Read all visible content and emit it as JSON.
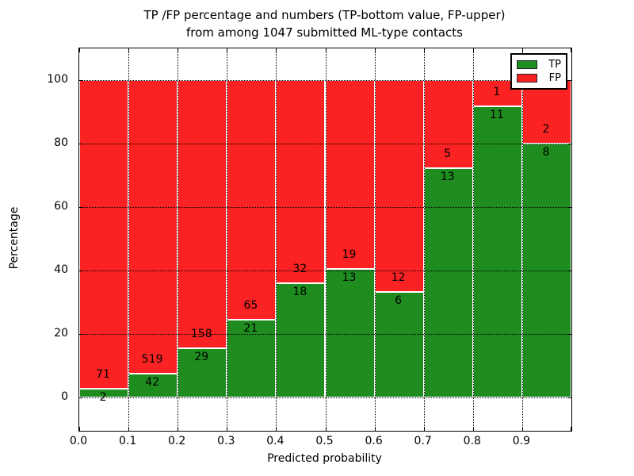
{
  "title": {
    "line1": "TP /FP percentage and numbers (TP-bottom value, FP-upper)",
    "line2": "from among 1047 submitted ML-type contacts"
  },
  "axes": {
    "xlabel": "Predicted probability",
    "ylabel": "Percentage",
    "x_tick_labels": [
      "0.0",
      "0.1",
      "0.2",
      "0.3",
      "0.4",
      "0.5",
      "0.6",
      "0.7",
      "0.8",
      "0.9"
    ],
    "y_tick_labels": [
      "0",
      "20",
      "40",
      "60",
      "80",
      "100"
    ],
    "y_tick_values": [
      0,
      20,
      40,
      60,
      80,
      100
    ]
  },
  "legend": {
    "items": [
      {
        "label": "TP",
        "color": "#1e8c1e"
      },
      {
        "label": "FP",
        "color": "#fa2222"
      }
    ],
    "position": "upper right"
  },
  "colors": {
    "tp": "#1e8c1e",
    "fp": "#fa2222",
    "grid": "#000000",
    "background": "#ffffff"
  },
  "chart_data": {
    "type": "bar",
    "stacked": true,
    "normalized_to_percent": true,
    "title": "TP /FP percentage and numbers (TP-bottom value, FP-upper) from among 1047 submitted ML-type contacts",
    "xlabel": "Predicted probability",
    "ylabel": "Percentage",
    "total_contacts": 1047,
    "bin_edges": [
      0.0,
      0.1,
      0.2,
      0.3,
      0.4,
      0.5,
      0.6,
      0.7,
      0.8,
      0.9,
      1.0
    ],
    "categories": [
      "0.0-0.1",
      "0.1-0.2",
      "0.2-0.3",
      "0.3-0.4",
      "0.4-0.5",
      "0.5-0.6",
      "0.6-0.7",
      "0.7-0.8",
      "0.8-0.9",
      "0.9-1.0"
    ],
    "series": [
      {
        "name": "TP",
        "counts": [
          2,
          42,
          29,
          21,
          18,
          13,
          6,
          13,
          11,
          8
        ],
        "percent": [
          2.74,
          7.49,
          15.51,
          24.42,
          36.0,
          40.63,
          33.33,
          72.22,
          91.67,
          80.0
        ]
      },
      {
        "name": "FP",
        "counts": [
          71,
          519,
          158,
          65,
          32,
          19,
          12,
          5,
          1,
          2
        ],
        "percent": [
          97.26,
          92.51,
          84.49,
          75.58,
          64.0,
          59.37,
          66.67,
          27.78,
          8.33,
          20.0
        ]
      }
    ],
    "xlim": [
      0.0,
      1.0
    ],
    "ylim": [
      -10,
      110
    ],
    "grid": true,
    "grid_style": "dotted",
    "legend_position": "upper right"
  }
}
